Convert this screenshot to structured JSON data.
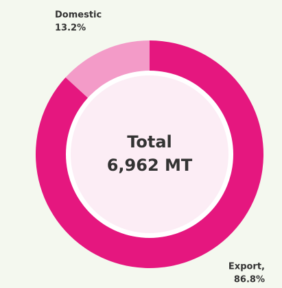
{
  "chart_data": {
    "type": "pie",
    "categories": [
      "Domestic",
      "Export,"
    ],
    "values": [
      13.2,
      86.8
    ],
    "value_labels": [
      "13.2%",
      "86.8%"
    ],
    "colors": [
      "#f39bc8",
      "#e5177f"
    ],
    "center_title": "Total",
    "center_value": "6,962 MT"
  }
}
